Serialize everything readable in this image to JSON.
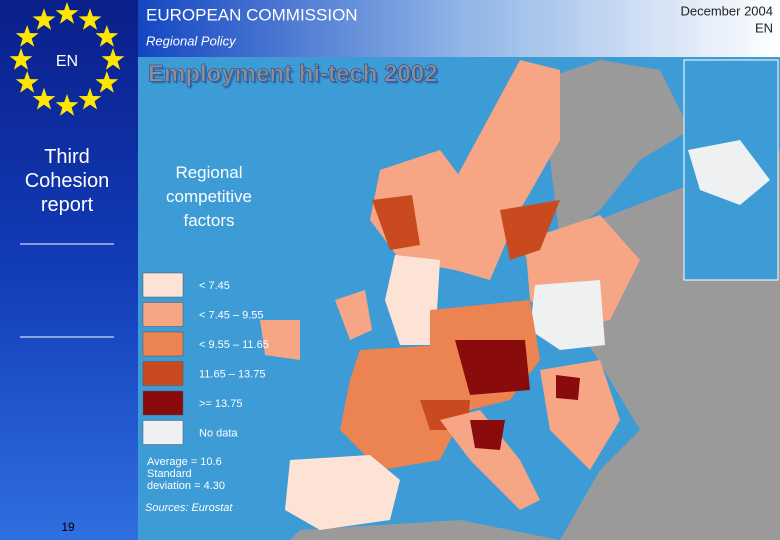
{
  "header": {
    "organization": "EUROPEAN COMMISSION",
    "department": "Regional Policy",
    "date": "December 2004",
    "language": "EN"
  },
  "sidebar": {
    "language": "EN",
    "report": "Third Cohesion report",
    "page_number": "19"
  },
  "slide": {
    "title": "Employment hi-tech 2002",
    "subtitle": "Regional competitive factors"
  },
  "legend": {
    "items": [
      {
        "label": "< 7.45",
        "color": "#fde3d6"
      },
      {
        "label": "< 7.45 – 9.55",
        "color": "#f6a585"
      },
      {
        "label": "< 9.55 – 11.65",
        "color": "#ec8452"
      },
      {
        "label": "11.65 – 13.75",
        "color": "#c94a1f"
      },
      {
        "label": ">= 13.75",
        "color": "#8a0b0b"
      },
      {
        "label": "No data",
        "color": "#eef0f2"
      }
    ]
  },
  "statistics": {
    "lines": [
      "Average = 10.6",
      "Standard",
      "deviation = 4.30"
    ]
  },
  "source": "Sources: Eurostat"
}
